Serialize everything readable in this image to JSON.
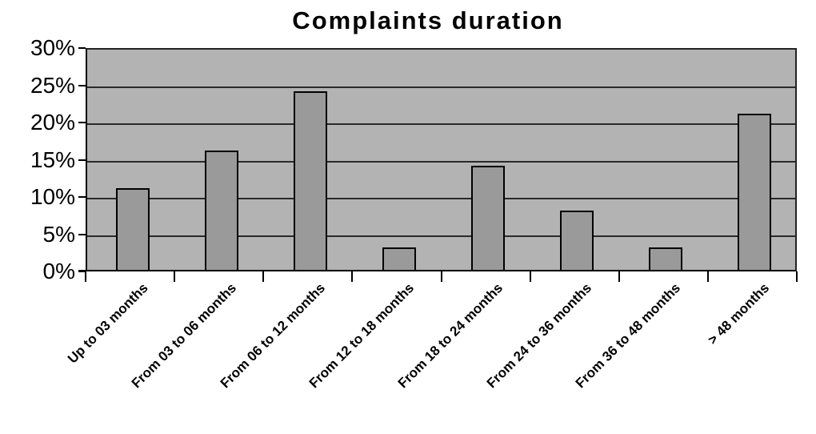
{
  "chart_data": {
    "type": "bar",
    "title": "Complaints duration",
    "categories": [
      "Up to 03 months",
      "From 03 to 06 months",
      "From 06 to 12 months",
      "From 12 to 18 months",
      "From 18 to 24 months",
      "From 24 to 36 months",
      "From 36 to 48 months",
      "> 48 months"
    ],
    "values": [
      11,
      16,
      24,
      3,
      14,
      8,
      3,
      21
    ],
    "value_unit": "%",
    "xlabel": "",
    "ylabel": "",
    "ylim": [
      0,
      30
    ],
    "ytick_step": 5,
    "ytick_labels": [
      "0%",
      "5%",
      "10%",
      "15%",
      "20%",
      "25%",
      "30%"
    ],
    "grid": "horizontal",
    "legend": "none",
    "colors": {
      "page_background": "#ffffff",
      "plot_background": "#b3b3b3",
      "bar_fill": "#9a9a9a",
      "bar_border": "#000000",
      "gridline": "#2a2a2a",
      "axis": "#000000",
      "text": "#000000"
    }
  }
}
